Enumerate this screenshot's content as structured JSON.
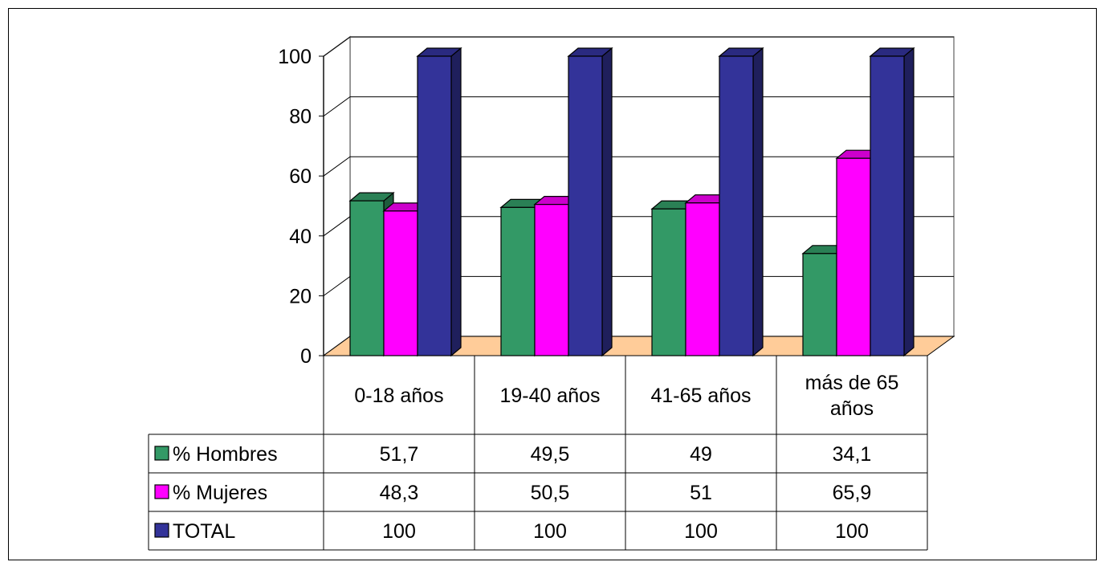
{
  "chart_data": {
    "type": "bar",
    "title": "",
    "xlabel": "",
    "ylabel": "",
    "ylim": [
      0,
      100
    ],
    "yticks": [
      "0",
      "20",
      "40",
      "60",
      "80",
      "100"
    ],
    "categories": [
      "0-18 años",
      "19-40 años",
      "41-65 años",
      "más de 65 años"
    ],
    "category_lines": [
      [
        "0-18 años"
      ],
      [
        "19-40 años"
      ],
      [
        "41-65 años"
      ],
      [
        "más de 65",
        "años"
      ]
    ],
    "series": [
      {
        "name": "% Hombres",
        "values": [
          51.7,
          49.5,
          49,
          34.1
        ],
        "labels": [
          "51,7",
          "49,5",
          "49",
          "34,1"
        ],
        "color": "#339966",
        "side_color": "#1f5c3d",
        "top_color": "#2a8055"
      },
      {
        "name": "% Mujeres",
        "values": [
          48.3,
          50.5,
          51,
          65.9
        ],
        "labels": [
          "48,3",
          "50,5",
          "51",
          "65,9"
        ],
        "color": "#ff00ff",
        "side_color": "#990099",
        "top_color": "#cc00cc"
      },
      {
        "name": "TOTAL",
        "values": [
          100,
          100,
          100,
          100
        ],
        "labels": [
          "100",
          "100",
          "100",
          "100"
        ],
        "color": "#333399",
        "side_color": "#1f1f5c",
        "top_color": "#2a2a80"
      }
    ],
    "floor_color": "#ffcc99",
    "grid": true,
    "legend": "data-table"
  }
}
